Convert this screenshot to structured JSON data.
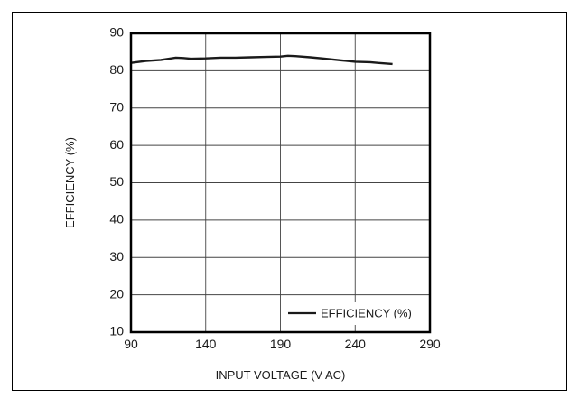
{
  "chart_data": {
    "type": "line",
    "xlabel": "INPUT VOLTAGE (V AC)",
    "ylabel": "EFFICIENCY (%)",
    "xlim": [
      90,
      290
    ],
    "ylim": [
      10,
      90
    ],
    "x_ticks": [
      90,
      140,
      190,
      240,
      290
    ],
    "y_ticks": [
      10,
      20,
      30,
      40,
      50,
      60,
      70,
      80,
      90
    ],
    "grid": true,
    "legend_position": "bottom-right",
    "series": [
      {
        "name": "EFFICIENCY (%)",
        "color": "#1a1a1a",
        "x": [
          90,
          100,
          110,
          120,
          125,
          130,
          140,
          150,
          160,
          170,
          180,
          190,
          195,
          200,
          210,
          220,
          230,
          240,
          250,
          255,
          265
        ],
        "y": [
          82.1,
          82.6,
          82.9,
          83.5,
          83.4,
          83.2,
          83.3,
          83.5,
          83.5,
          83.6,
          83.7,
          83.8,
          84.0,
          83.9,
          83.6,
          83.2,
          82.8,
          82.4,
          82.3,
          82.1,
          81.8
        ]
      }
    ]
  }
}
